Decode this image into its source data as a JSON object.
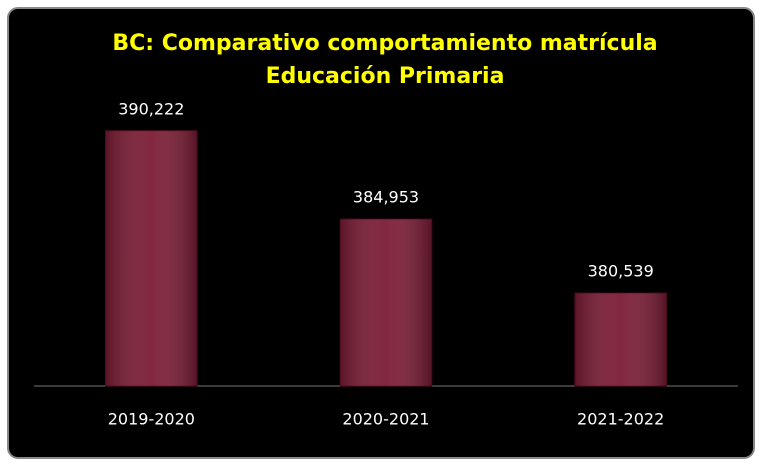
{
  "chart_data": {
    "type": "bar",
    "title": "BC: Comparativo comportamiento matrícula",
    "subtitle": "Educación Primaria",
    "categories": [
      "2019-2020",
      "2020-2021",
      "2021-2022"
    ],
    "values": [
      390222,
      384953,
      380539
    ],
    "value_labels": [
      "390,222",
      "384,953",
      "380,539"
    ],
    "color": "#7b1c35",
    "ylim": [
      375000,
      392000
    ]
  }
}
